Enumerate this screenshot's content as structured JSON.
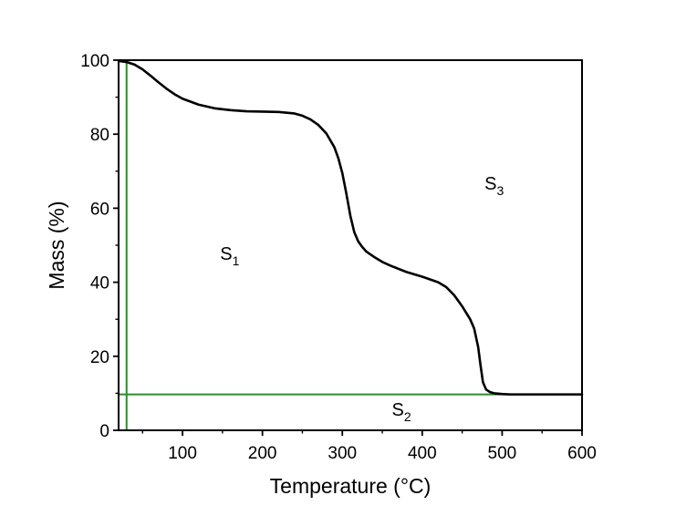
{
  "chart_data": {
    "type": "line",
    "title": "",
    "xlabel": "Temperature (°C)",
    "ylabel": "Mass (%)",
    "xlim": [
      20,
      600
    ],
    "ylim": [
      0,
      100
    ],
    "x_ticks": [
      100,
      200,
      300,
      400,
      500,
      600
    ],
    "y_ticks": [
      0,
      20,
      40,
      60,
      80,
      100
    ],
    "grid": false,
    "legend": "none",
    "series": [
      {
        "color": "#000000",
        "x": [
          20,
          30,
          40,
          50,
          60,
          70,
          80,
          90,
          100,
          120,
          140,
          160,
          180,
          200,
          220,
          240,
          250,
          260,
          270,
          280,
          290,
          295,
          300,
          305,
          310,
          315,
          320,
          325,
          330,
          340,
          350,
          360,
          380,
          400,
          420,
          430,
          440,
          450,
          460,
          465,
          470,
          473,
          476,
          480,
          485,
          490,
          500,
          510,
          520,
          550,
          600
        ],
        "y": [
          99.8,
          99.5,
          98.8,
          97.5,
          95.8,
          94.0,
          92.3,
          90.8,
          89.6,
          88.0,
          87.0,
          86.5,
          86.2,
          86.1,
          86.0,
          85.6,
          85.0,
          84.0,
          82.5,
          80.2,
          76.5,
          73.5,
          69.5,
          64.0,
          58.0,
          53.5,
          51.0,
          49.5,
          48.3,
          46.8,
          45.5,
          44.5,
          42.8,
          41.5,
          40.0,
          38.7,
          36.5,
          33.5,
          30.0,
          27.5,
          22.5,
          17.5,
          13.0,
          11.0,
          10.3,
          10.0,
          9.8,
          9.7,
          9.7,
          9.7,
          9.7
        ]
      }
    ],
    "reference_lines": {
      "color": "#2e8b2e",
      "vertical_x": 30,
      "horizontal_y": 9.7
    },
    "annotations": [
      {
        "main": "S",
        "sub": "1",
        "x": 147,
        "y": 46
      },
      {
        "main": "S",
        "sub": "2",
        "x": 362,
        "y": 4
      },
      {
        "main": "S",
        "sub": "3",
        "x": 478,
        "y": 65
      }
    ]
  }
}
